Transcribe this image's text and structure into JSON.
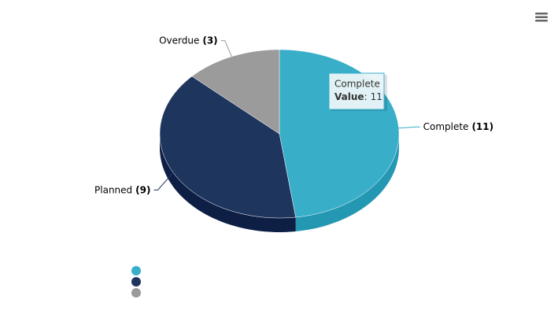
{
  "chart_data": {
    "type": "pie",
    "categories": [
      "Complete",
      "Planned",
      "Overdue"
    ],
    "values": [
      11,
      9,
      3
    ],
    "value_labels": [
      "(11)",
      "(9)",
      "(3)"
    ],
    "colors": [
      "#38aec8",
      "#1e355e",
      "#9b9b9b"
    ],
    "side_colors": [
      "#2497b2",
      "#0e1f45",
      "#7f7f7f"
    ],
    "tooltip": {
      "series_index": 0,
      "label": "Value",
      "separator": ":"
    }
  }
}
